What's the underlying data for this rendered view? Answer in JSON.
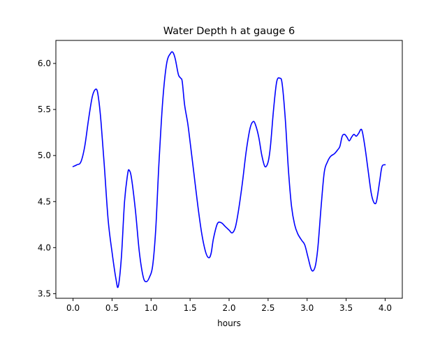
{
  "chart_data": {
    "type": "line",
    "title": "Water Depth h at gauge 6",
    "xlabel": "hours",
    "ylabel": "",
    "xlim": [
      -0.22,
      4.22
    ],
    "ylim": [
      3.45,
      6.25
    ],
    "xticks": [
      0.0,
      0.5,
      1.0,
      1.5,
      2.0,
      2.5,
      3.0,
      3.5,
      4.0
    ],
    "xtick_labels": [
      "0.0",
      "0.5",
      "1.0",
      "1.5",
      "2.0",
      "2.5",
      "3.0",
      "3.5",
      "4.0"
    ],
    "yticks": [
      3.5,
      4.0,
      4.5,
      5.0,
      5.5,
      6.0
    ],
    "ytick_labels": [
      "3.5",
      "4.0",
      "4.5",
      "5.0",
      "5.5",
      "6.0"
    ],
    "grid": false,
    "legend": "none",
    "series": [
      {
        "color": "#0000ff",
        "x": [
          0.0,
          0.05,
          0.1,
          0.15,
          0.2,
          0.25,
          0.3,
          0.33,
          0.36,
          0.4,
          0.45,
          0.5,
          0.55,
          0.58,
          0.62,
          0.66,
          0.7,
          0.72,
          0.75,
          0.8,
          0.85,
          0.9,
          0.94,
          0.98,
          1.02,
          1.06,
          1.1,
          1.15,
          1.2,
          1.25,
          1.28,
          1.31,
          1.35,
          1.38,
          1.4,
          1.43,
          1.47,
          1.5,
          1.55,
          1.6,
          1.65,
          1.7,
          1.74,
          1.77,
          1.8,
          1.85,
          1.9,
          1.95,
          2.0,
          2.04,
          2.08,
          2.12,
          2.17,
          2.22,
          2.27,
          2.31,
          2.34,
          2.38,
          2.42,
          2.46,
          2.5,
          2.53,
          2.57,
          2.61,
          2.65,
          2.68,
          2.72,
          2.76,
          2.8,
          2.84,
          2.88,
          2.93,
          2.97,
          3.01,
          3.05,
          3.08,
          3.11,
          3.14,
          3.18,
          3.22,
          3.26,
          3.3,
          3.35,
          3.39,
          3.42,
          3.45,
          3.48,
          3.51,
          3.54,
          3.57,
          3.6,
          3.63,
          3.66,
          3.7,
          3.74,
          3.78,
          3.82,
          3.85,
          3.88,
          3.9,
          3.93,
          3.96,
          4.0
        ],
        "y": [
          4.88,
          4.9,
          4.93,
          5.1,
          5.4,
          5.65,
          5.72,
          5.6,
          5.35,
          4.9,
          4.3,
          3.95,
          3.66,
          3.58,
          3.9,
          4.5,
          4.8,
          4.84,
          4.75,
          4.4,
          3.95,
          3.68,
          3.63,
          3.68,
          3.8,
          4.2,
          4.9,
          5.6,
          6.0,
          6.11,
          6.12,
          6.05,
          5.88,
          5.84,
          5.8,
          5.55,
          5.35,
          5.15,
          4.8,
          4.45,
          4.15,
          3.95,
          3.89,
          3.94,
          4.1,
          4.26,
          4.27,
          4.23,
          4.19,
          4.16,
          4.22,
          4.4,
          4.7,
          5.05,
          5.3,
          5.37,
          5.33,
          5.2,
          5.0,
          4.88,
          4.93,
          5.1,
          5.5,
          5.8,
          5.84,
          5.78,
          5.4,
          4.85,
          4.45,
          4.25,
          4.15,
          4.08,
          4.03,
          3.9,
          3.77,
          3.75,
          3.82,
          4.02,
          4.45,
          4.82,
          4.93,
          4.99,
          5.02,
          5.06,
          5.1,
          5.21,
          5.23,
          5.2,
          5.16,
          5.2,
          5.23,
          5.21,
          5.24,
          5.28,
          5.1,
          4.85,
          4.6,
          4.5,
          4.48,
          4.55,
          4.72,
          4.88,
          4.9
        ]
      }
    ]
  }
}
